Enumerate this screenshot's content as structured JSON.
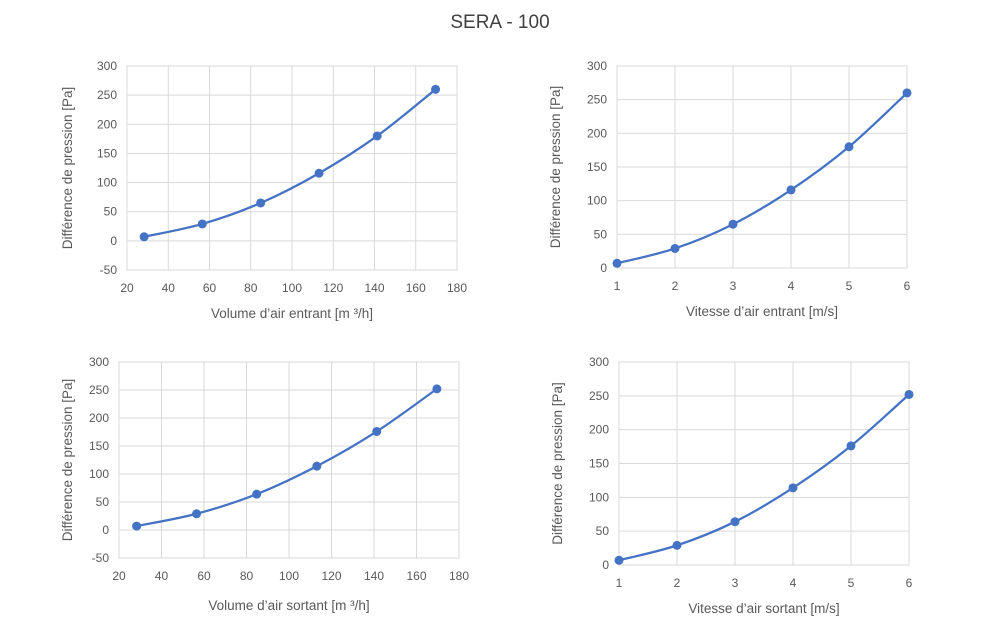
{
  "title": "SERA - 100",
  "colors": {
    "series": "#4472c4",
    "grid": "#d9d9d9",
    "text": "#595959"
  },
  "chart_data": [
    {
      "type": "scatter",
      "xlabel": "Volume d’air entrant [m ³/h]",
      "ylabel": "Différence de pression [Pa]",
      "xlim": [
        20,
        180
      ],
      "ylim": [
        -50,
        300
      ],
      "xticks": [
        20,
        40,
        60,
        80,
        100,
        120,
        140,
        160,
        180
      ],
      "yticks": [
        -50,
        0,
        50,
        100,
        150,
        200,
        250,
        300
      ],
      "grid": true,
      "smooth": true,
      "x": [
        28.3,
        56.5,
        84.8,
        113.1,
        141.3,
        169.6
      ],
      "y": [
        7,
        29,
        65,
        116,
        180,
        260
      ]
    },
    {
      "type": "scatter",
      "xlabel": "Vitesse d’air entrant [m/s]",
      "ylabel": "Différence de pression [Pa]",
      "xlim": [
        1,
        6
      ],
      "ylim": [
        0,
        300
      ],
      "xticks": [
        1,
        2,
        3,
        4,
        5,
        6
      ],
      "yticks": [
        0,
        50,
        100,
        150,
        200,
        250,
        300
      ],
      "grid": true,
      "smooth": true,
      "x": [
        1,
        2,
        3,
        4,
        5,
        6
      ],
      "y": [
        7,
        29,
        65,
        116,
        180,
        260
      ]
    },
    {
      "type": "scatter",
      "xlabel": "Volume d’air sortant [m ³/h]",
      "ylabel": "Différence de pression [Pa]",
      "xlim": [
        20,
        180
      ],
      "ylim": [
        -50,
        300
      ],
      "xticks": [
        20,
        40,
        60,
        80,
        100,
        120,
        140,
        160,
        180
      ],
      "yticks": [
        -50,
        0,
        50,
        100,
        150,
        200,
        250,
        300
      ],
      "grid": true,
      "smooth": true,
      "x": [
        28.3,
        56.5,
        84.8,
        113.1,
        141.3,
        169.6
      ],
      "y": [
        7,
        29,
        64,
        114,
        176,
        252
      ]
    },
    {
      "type": "scatter",
      "xlabel": "Vitesse d’air sortant [m/s]",
      "ylabel": "Différence de pression [Pa]",
      "xlim": [
        1,
        6
      ],
      "ylim": [
        0,
        300
      ],
      "xticks": [
        1,
        2,
        3,
        4,
        5,
        6
      ],
      "yticks": [
        0,
        50,
        100,
        150,
        200,
        250,
        300
      ],
      "grid": true,
      "smooth": true,
      "x": [
        1,
        2,
        3,
        4,
        5,
        6
      ],
      "y": [
        7,
        29,
        64,
        114,
        176,
        252
      ]
    }
  ]
}
